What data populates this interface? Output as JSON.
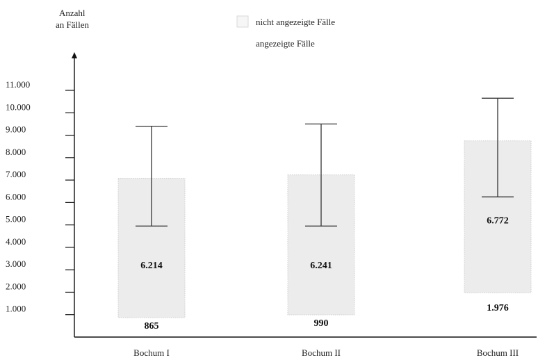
{
  "chart_data": {
    "type": "bar",
    "ylabel_line1": "Anzahl",
    "ylabel_line2": "an Fällen",
    "ylim": [
      0,
      11500
    ],
    "yticks": [
      1000,
      2000,
      3000,
      4000,
      5000,
      6000,
      7000,
      8000,
      9000,
      10000,
      11000
    ],
    "ytick_labels": [
      "1.000",
      "2.000",
      "3.000",
      "4.000",
      "5.000",
      "6.000",
      "7.000",
      "8.000",
      "9.000",
      "10.000",
      "11.000"
    ],
    "categories": [
      "Bochum I",
      "Bochum II",
      "Bochum III"
    ],
    "legend": {
      "position": "top",
      "entries": [
        "nicht angezeigte Fälle",
        "angezeigte Fälle"
      ]
    },
    "series": [
      {
        "name": "angezeigte Fälle",
        "values": [
          865,
          990,
          1976
        ],
        "labels": [
          "865",
          "990",
          "1.976"
        ]
      },
      {
        "name": "nicht angezeigte Fälle",
        "values": [
          6214,
          6241,
          6772
        ],
        "labels": [
          "6.214",
          "6.241",
          "6.772"
        ],
        "error_low": [
          4950,
          4950,
          6250
        ],
        "error_high": [
          9400,
          9500,
          10650
        ]
      }
    ],
    "colors": {
      "bar_fill": "#ececec",
      "bar_stroke": "#cfcfcf",
      "axis": "#111111"
    }
  }
}
